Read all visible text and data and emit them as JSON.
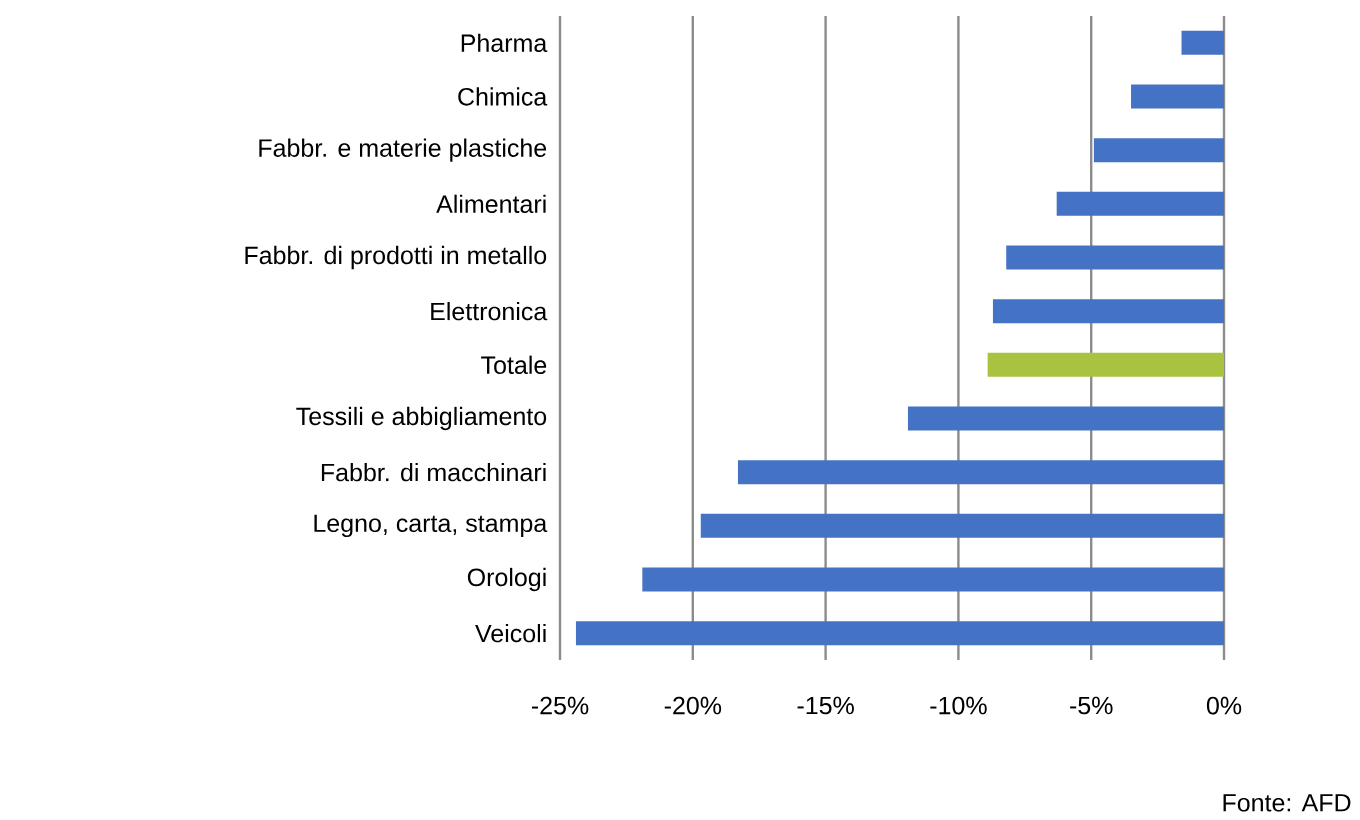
{
  "chart_data": {
    "type": "bar",
    "orientation": "horizontal",
    "categories": [
      "Pharma",
      "Chimica",
      "Fabbr. e materie plastiche",
      "Alimentari",
      "Fabbr. di prodotti in metallo",
      "Elettronica",
      "Totale",
      "Tessili e abbigliamento",
      "Fabbr. di macchinari",
      "Legno, carta, stampa",
      "Orologi",
      "Veicoli"
    ],
    "values": [
      -1.6,
      -3.5,
      -4.9,
      -6.3,
      -8.2,
      -8.7,
      -8.9,
      -11.9,
      -18.3,
      -19.7,
      -21.9,
      -24.4
    ],
    "colors": [
      "#4472c4",
      "#4472c4",
      "#4472c4",
      "#4472c4",
      "#4472c4",
      "#4472c4",
      "#a9c23f",
      "#4472c4",
      "#4472c4",
      "#4472c4",
      "#4472c4",
      "#4472c4"
    ],
    "xlim": [
      -25,
      0
    ],
    "xticks": [
      {
        "value": -25,
        "label": "-25%"
      },
      {
        "value": -20,
        "label": "-20%"
      },
      {
        "value": -15,
        "label": "-15%"
      },
      {
        "value": -10,
        "label": "-10%"
      },
      {
        "value": -5,
        "label": "-5%"
      },
      {
        "value": 0,
        "label": "0%"
      }
    ],
    "grid": "x",
    "annotations": [
      "Fonte: AFD"
    ]
  }
}
